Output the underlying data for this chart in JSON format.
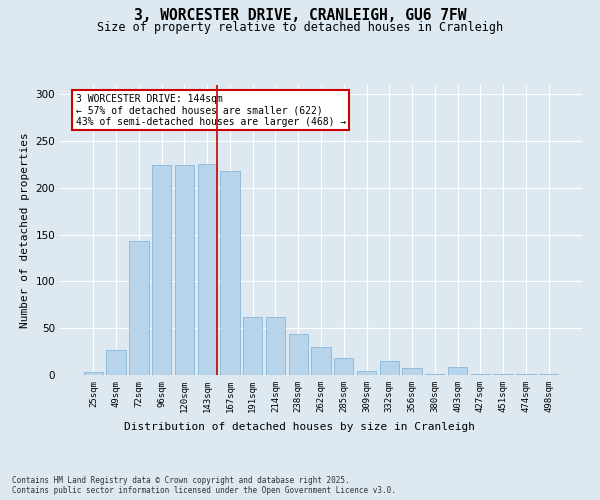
{
  "title1": "3, WORCESTER DRIVE, CRANLEIGH, GU6 7FW",
  "title2": "Size of property relative to detached houses in Cranleigh",
  "xlabel": "Distribution of detached houses by size in Cranleigh",
  "ylabel": "Number of detached properties",
  "categories": [
    "25sqm",
    "49sqm",
    "72sqm",
    "96sqm",
    "120sqm",
    "143sqm",
    "167sqm",
    "191sqm",
    "214sqm",
    "238sqm",
    "262sqm",
    "285sqm",
    "309sqm",
    "332sqm",
    "356sqm",
    "380sqm",
    "403sqm",
    "427sqm",
    "451sqm",
    "474sqm",
    "498sqm"
  ],
  "values": [
    3,
    27,
    143,
    224,
    225,
    226,
    218,
    62,
    62,
    44,
    30,
    18,
    4,
    15,
    7,
    1,
    9,
    1,
    1,
    1,
    1
  ],
  "bar_color": "#b8d4ea",
  "bar_edge_color": "#7aafd4",
  "marker_index": 5,
  "marker_color": "#cc0000",
  "annotation_text": "3 WORCESTER DRIVE: 144sqm\n← 57% of detached houses are smaller (622)\n43% of semi-detached houses are larger (468) →",
  "annotation_box_facecolor": "#ffffff",
  "annotation_box_edgecolor": "#cc0000",
  "bg_color": "#dde8f0",
  "grid_color": "#ffffff",
  "footnote": "Contains HM Land Registry data © Crown copyright and database right 2025.\nContains public sector information licensed under the Open Government Licence v3.0.",
  "ylim_max": 310,
  "title_fontsize": 10.5,
  "subtitle_fontsize": 8.5,
  "tick_fontsize": 6.5,
  "ylabel_fontsize": 8,
  "xlabel_fontsize": 8,
  "footnote_fontsize": 5.5,
  "annotation_fontsize": 7
}
